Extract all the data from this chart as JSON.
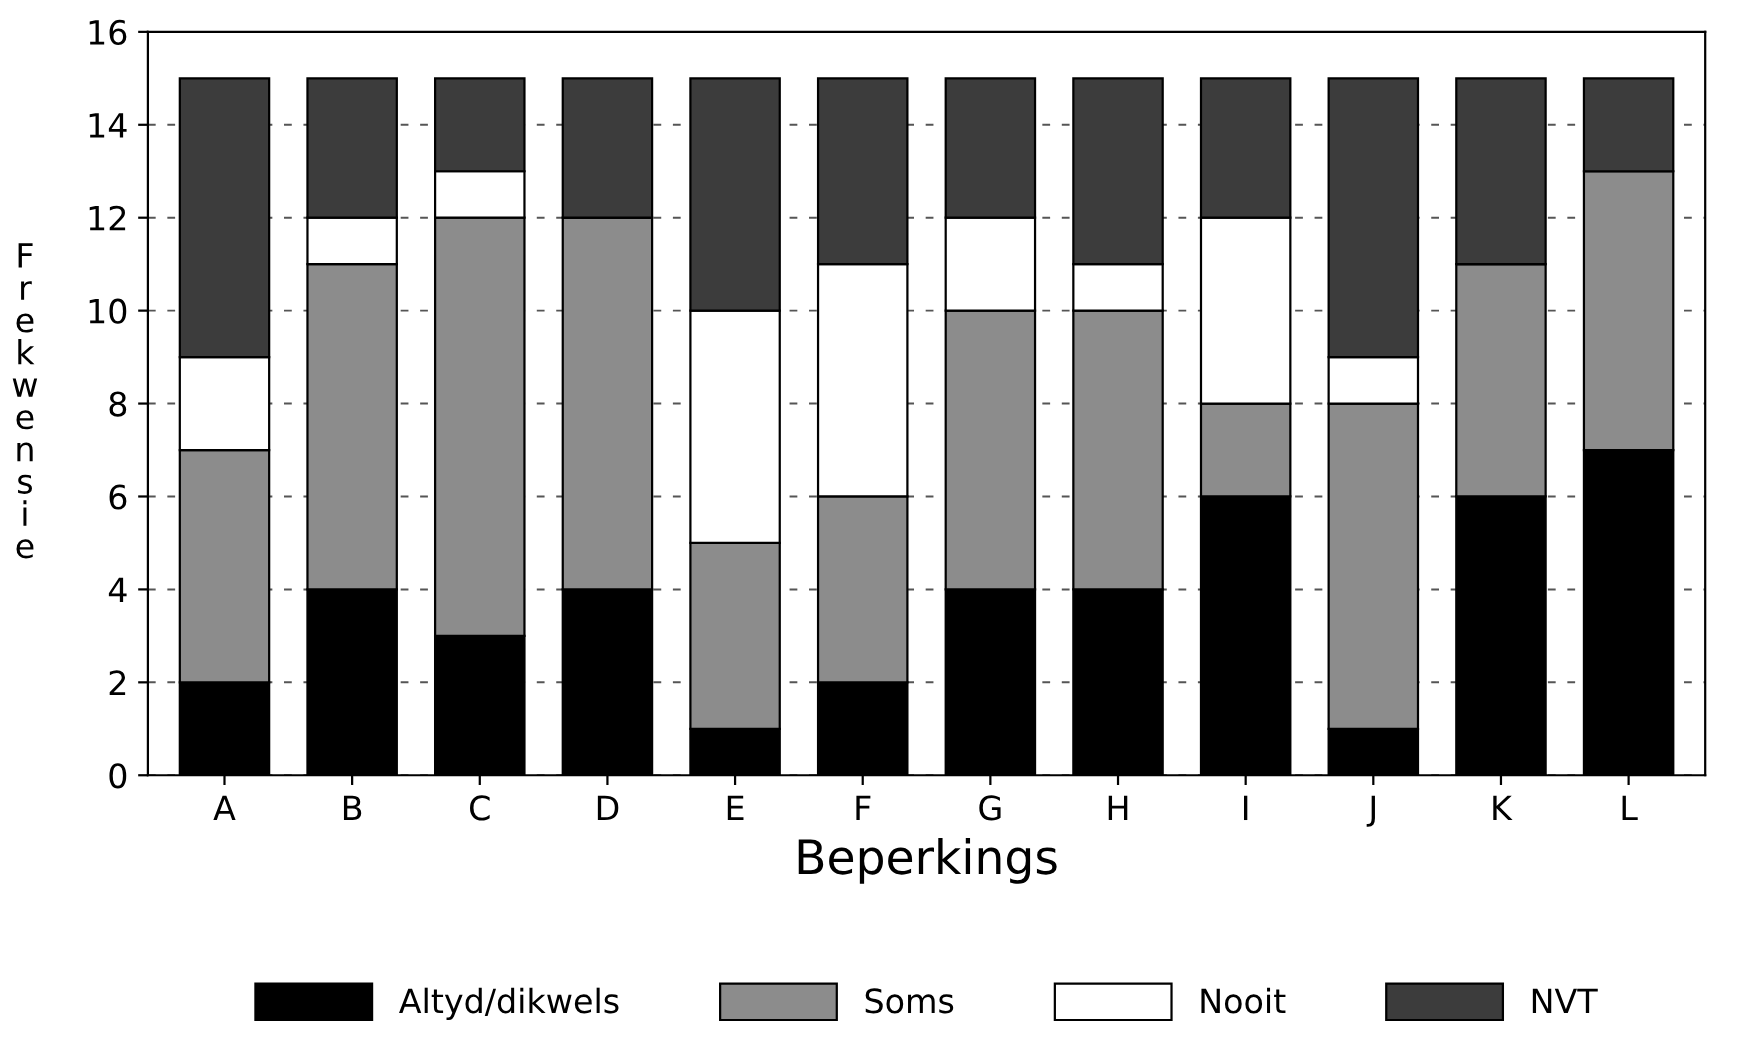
{
  "chart_data": {
    "type": "bar",
    "stacked": true,
    "xlabel": "Beperkings",
    "ylabel": "Frekwensie",
    "categories": [
      "A",
      "B",
      "C",
      "D",
      "E",
      "F",
      "G",
      "H",
      "I",
      "J",
      "K",
      "L"
    ],
    "series": [
      {
        "name": "Altyd/dikwels",
        "color": "#000000",
        "values": [
          2,
          4,
          3,
          4,
          1,
          2,
          4,
          4,
          6,
          1,
          6,
          7
        ]
      },
      {
        "name": "Soms",
        "color": "#8c8c8c",
        "values": [
          5,
          7,
          9,
          8,
          4,
          4,
          6,
          6,
          2,
          7,
          5,
          6
        ]
      },
      {
        "name": "Nooit",
        "color": "#ffffff",
        "values": [
          2,
          1,
          1,
          0,
          5,
          5,
          2,
          1,
          4,
          1,
          0,
          0
        ]
      },
      {
        "name": "NVT",
        "color": "#3c3c3c",
        "values": [
          6,
          3,
          2,
          3,
          5,
          4,
          3,
          4,
          3,
          6,
          4,
          2
        ]
      }
    ],
    "ylim": [
      0,
      16
    ],
    "yticks": [
      0,
      2,
      4,
      6,
      8,
      10,
      12,
      14,
      16
    ],
    "grid": "y",
    "legend": "bottom"
  }
}
